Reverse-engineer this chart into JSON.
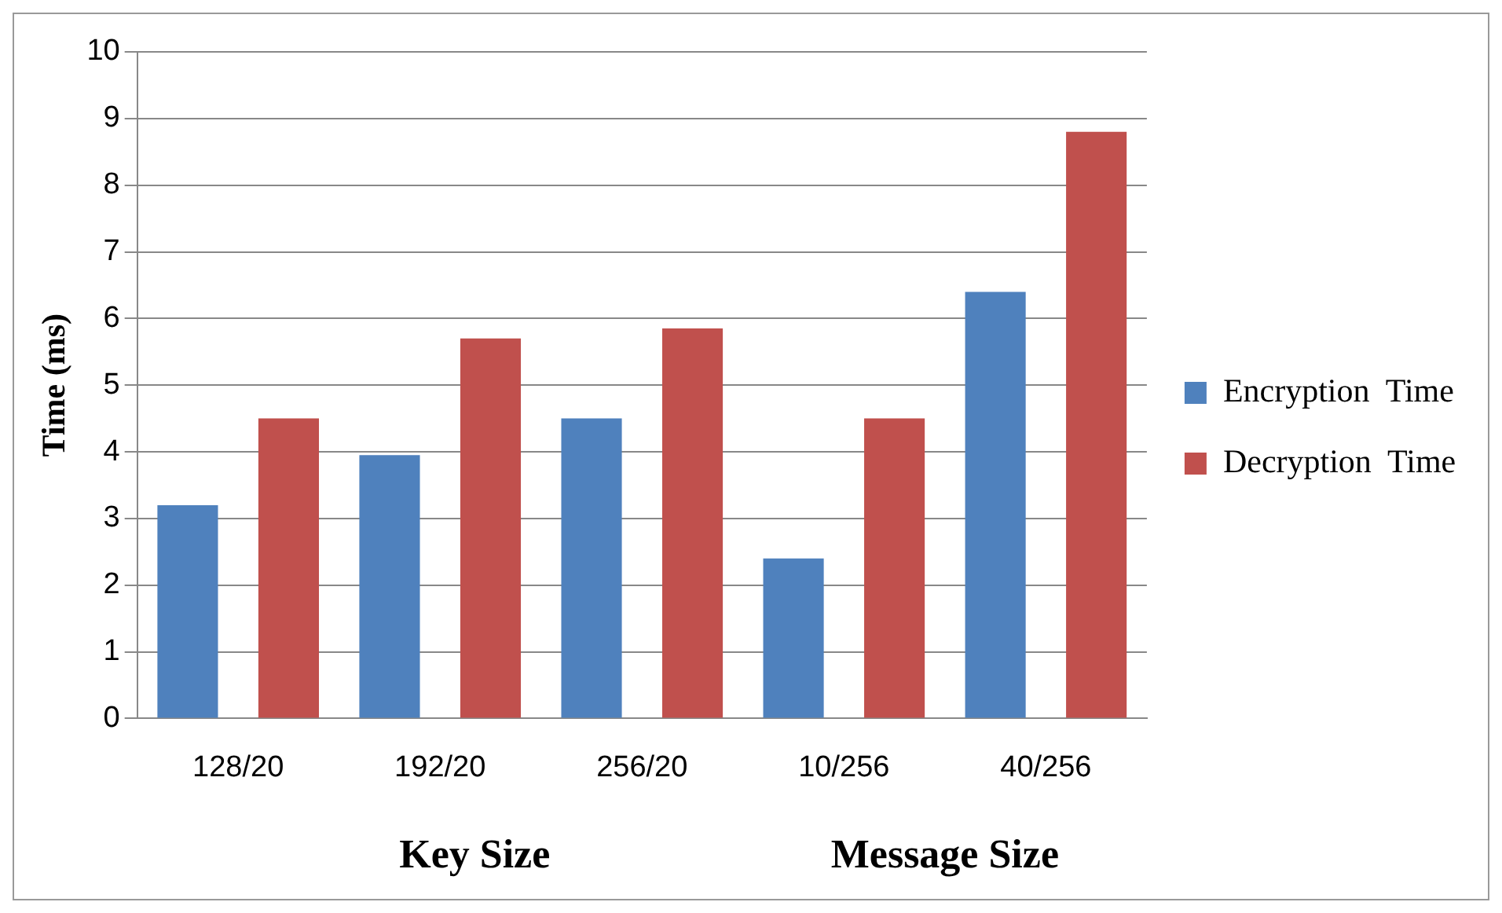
{
  "chart_data": {
    "type": "bar",
    "xlabel": "Key Size",
    "ylabel": "Time (ms)",
    "annotations": [
      "Message Size"
    ],
    "categories": [
      "128/20",
      "192/20",
      "256/20",
      "10/256",
      "40/256"
    ],
    "series": [
      {
        "name": "Encryption  Time",
        "color": "#4f81bd",
        "values": [
          3.2,
          3.95,
          4.5,
          2.4,
          6.4
        ]
      },
      {
        "name": "Decryption  Time",
        "color": "#c0504d",
        "values": [
          4.5,
          5.7,
          5.85,
          4.5,
          8.8
        ]
      }
    ],
    "ylim": [
      0,
      10
    ],
    "yticks": [
      0,
      1,
      2,
      3,
      4,
      5,
      6,
      7,
      8,
      9,
      10
    ],
    "grid": "y",
    "legend": "right"
  }
}
